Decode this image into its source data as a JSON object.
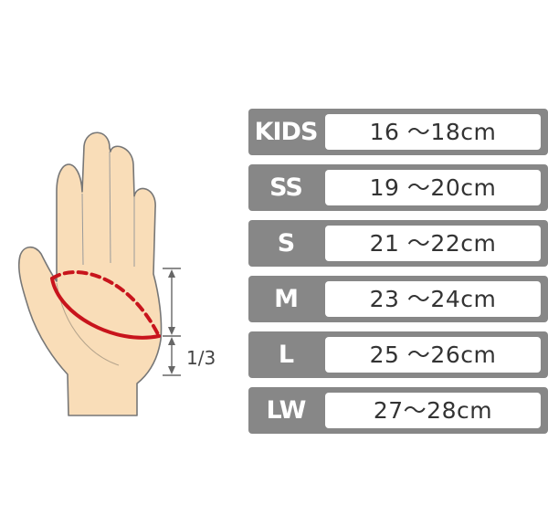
{
  "measurement": {
    "fraction_label": "1/3"
  },
  "colors": {
    "skin": "#f9ddb8",
    "outline": "#777777",
    "measure_line": "#c8141c",
    "row_background": "#878787",
    "value_background": "#ffffff",
    "value_text": "#333333"
  },
  "icons": {
    "hand": "open-palm-hand-icon",
    "arrow": "double-headed-vertical-arrow"
  },
  "sizes": [
    {
      "label": "KIDS",
      "range": "16 ～18cm"
    },
    {
      "label": "SS",
      "range": "19 ～20cm"
    },
    {
      "label": "S",
      "range": "21 ～22cm"
    },
    {
      "label": "M",
      "range": "23 ～24cm"
    },
    {
      "label": "L",
      "range": "25 ～26cm"
    },
    {
      "label": "LW",
      "range": "27～28cm"
    }
  ]
}
